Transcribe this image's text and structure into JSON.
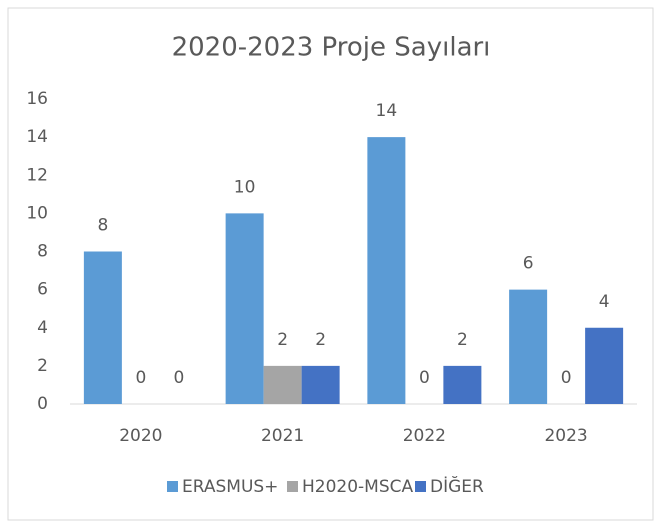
{
  "chart_data": {
    "type": "bar",
    "title": "2020-2023 Proje Sayıları",
    "categories": [
      "2020",
      "2021",
      "2022",
      "2023"
    ],
    "series": [
      {
        "name": "ERASMUS+",
        "color": "#5b9bd5",
        "values": [
          8,
          10,
          14,
          6
        ]
      },
      {
        "name": "H2020-MSCA",
        "color": "#a5a5a5",
        "values": [
          0,
          2,
          0,
          0
        ]
      },
      {
        "name": "DİĞER",
        "color": "#4472c4",
        "values": [
          0,
          2,
          2,
          4
        ]
      }
    ],
    "ylim": [
      0,
      16
    ],
    "yticks": [
      0,
      2,
      4,
      6,
      8,
      10,
      12,
      14,
      16
    ],
    "grid": false,
    "legend": "bottom"
  }
}
